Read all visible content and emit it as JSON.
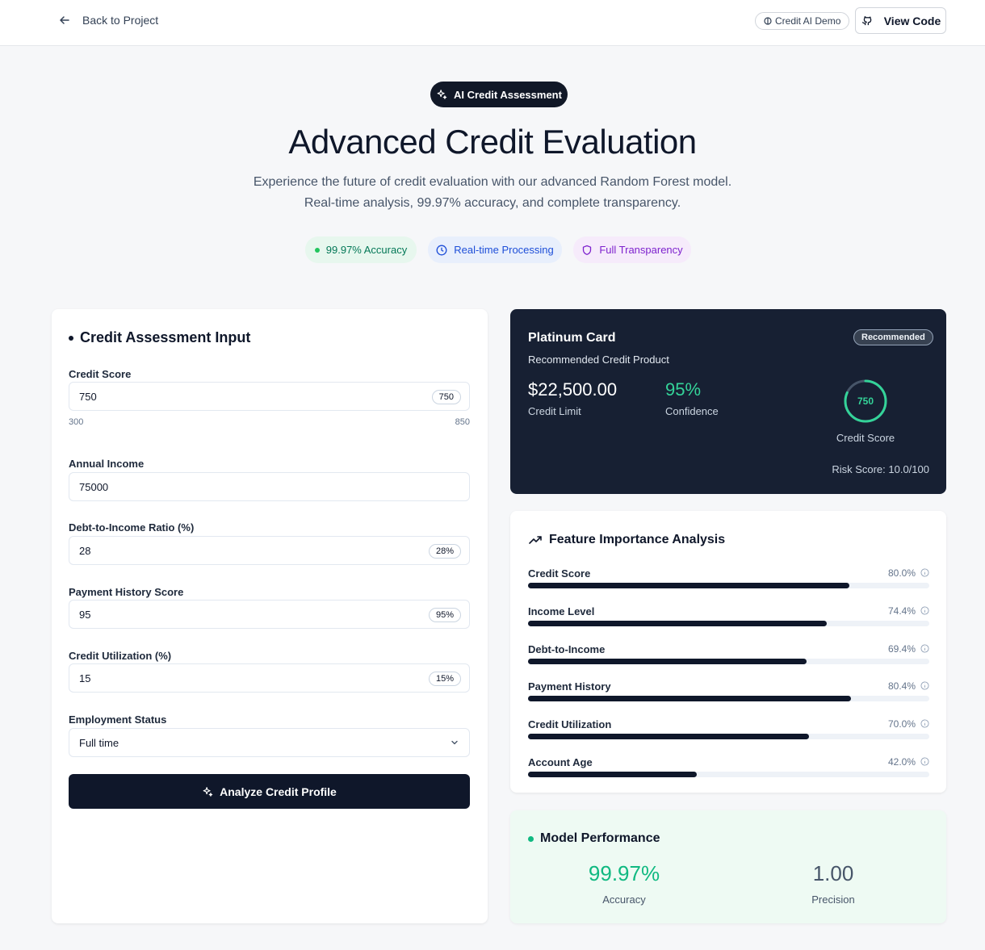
{
  "topbar": {
    "back_label": "Back to Project",
    "demo_badge": "Credit AI Demo",
    "view_code_label": "View Code"
  },
  "hero": {
    "pill": "AI Credit Assessment",
    "title": "Advanced Credit Evaluation",
    "subtitle_line1": "Experience the future of credit evaluation with our advanced Random Forest model.",
    "subtitle_line2": "Real-time analysis, 99.97% accuracy, and complete transparency.",
    "chips": [
      "99.97% Accuracy",
      "Real-time Processing",
      "Full Transparency"
    ]
  },
  "input_form": {
    "title": "Credit Assessment Input",
    "credit_score": {
      "label": "Credit Score",
      "value": "750",
      "tag": "750",
      "min": "300",
      "max": "850"
    },
    "annual_income": {
      "label": "Annual Income",
      "value": "75000"
    },
    "dti": {
      "label": "Debt-to-Income Ratio (%)",
      "value": "28",
      "tag": "28%"
    },
    "payment_history": {
      "label": "Payment History Score",
      "value": "95",
      "tag": "95%"
    },
    "utilization": {
      "label": "Credit Utilization (%)",
      "value": "15",
      "tag": "15%"
    },
    "employment": {
      "label": "Employment Status",
      "value": "Full time"
    },
    "analyze_label": "Analyze Credit Profile"
  },
  "product": {
    "name": "Platinum Card",
    "badge": "Recommended",
    "subtitle": "Recommended Credit Product",
    "limit": "$22,500.00",
    "limit_label": "Credit Limit",
    "confidence": "95%",
    "confidence_label": "Confidence",
    "score": "750",
    "score_fraction": 0.818,
    "score_label": "Credit Score",
    "risk": "Risk Score: 10.0/100"
  },
  "features": {
    "title": "Feature Importance Analysis",
    "items": [
      {
        "name": "Credit Score",
        "pct_label": "80.0%",
        "value": 80.0
      },
      {
        "name": "Income Level",
        "pct_label": "74.4%",
        "value": 74.4
      },
      {
        "name": "Debt-to-Income",
        "pct_label": "69.4%",
        "value": 69.4
      },
      {
        "name": "Payment History",
        "pct_label": "80.4%",
        "value": 80.4
      },
      {
        "name": "Credit Utilization",
        "pct_label": "70.0%",
        "value": 70.0
      },
      {
        "name": "Account Age",
        "pct_label": "42.0%",
        "value": 42.0
      }
    ]
  },
  "performance": {
    "title": "Model Performance",
    "accuracy": "99.97%",
    "accuracy_label": "Accuracy",
    "precision": "1.00",
    "precision_label": "Precision"
  },
  "colors": {
    "brand_dark": "#0f172a",
    "success": "#10b981",
    "product_bg": "#172033"
  }
}
